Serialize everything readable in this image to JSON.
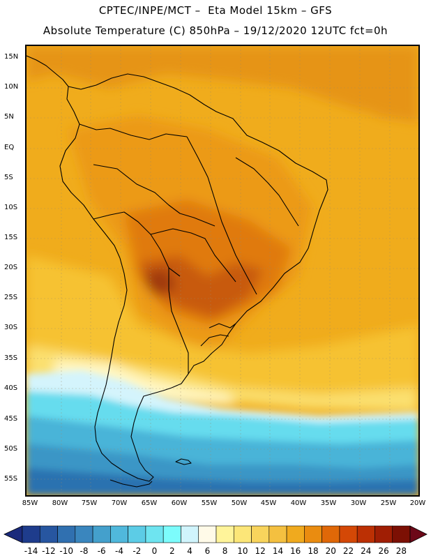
{
  "title_line1": "CPTEC/INPE/MCT –  Eta Model 15km – GFS",
  "title_line2": "Absolute Temperature (C) 850hPa – 19/12/2020 12UTC fct=0h",
  "lat_labels": [
    "15N",
    "10N",
    "5N",
    "EQ",
    "5S",
    "10S",
    "15S",
    "20S",
    "25S",
    "30S",
    "35S",
    "40S",
    "45S",
    "50S",
    "55S"
  ],
  "lon_labels": [
    "85W",
    "80W",
    "75W",
    "70W",
    "65W",
    "60W",
    "55W",
    "50W",
    "45W",
    "40W",
    "35W",
    "30W",
    "25W",
    "20W"
  ],
  "colorbar": {
    "labels": [
      "-14",
      "-12",
      "-10",
      "-8",
      "-6",
      "-4",
      "-2",
      "0",
      "2",
      "4",
      "6",
      "8",
      "10",
      "12",
      "14",
      "16",
      "18",
      "20",
      "22",
      "24",
      "26",
      "28"
    ],
    "colors": [
      "#1e3c8c",
      "#2756a0",
      "#3070b0",
      "#3a86be",
      "#44a0cc",
      "#50b8dc",
      "#5ccce6",
      "#6ee4f0",
      "#7cfcfc",
      "#d0f4fc",
      "#fffae8",
      "#fff49a",
      "#fce678",
      "#f8d45c",
      "#f4c040",
      "#f0aa1e",
      "#ea8c10",
      "#e06808",
      "#d44806",
      "#bc3004",
      "#a01e04",
      "#7c1004"
    ],
    "under_color": "#1a2a7c",
    "over_color": "#6c0818"
  },
  "palette": {
    "ocean_warm": "#f0ac1c",
    "ocean_hot": "#e69414",
    "land_warm": "#ec9a18",
    "land_hot": "#e07a10",
    "core_hot": "#c85a0a",
    "peak": "#a03a08",
    "mild": "#f6c232",
    "cool": "#fbe070",
    "cold_front": "#fff7c4",
    "pale": "#d4f4fc",
    "cyan": "#66dcee",
    "sky": "#48b4d8",
    "blue": "#3a96c6",
    "deep": "#2c72b0",
    "border_color": "#000000"
  }
}
